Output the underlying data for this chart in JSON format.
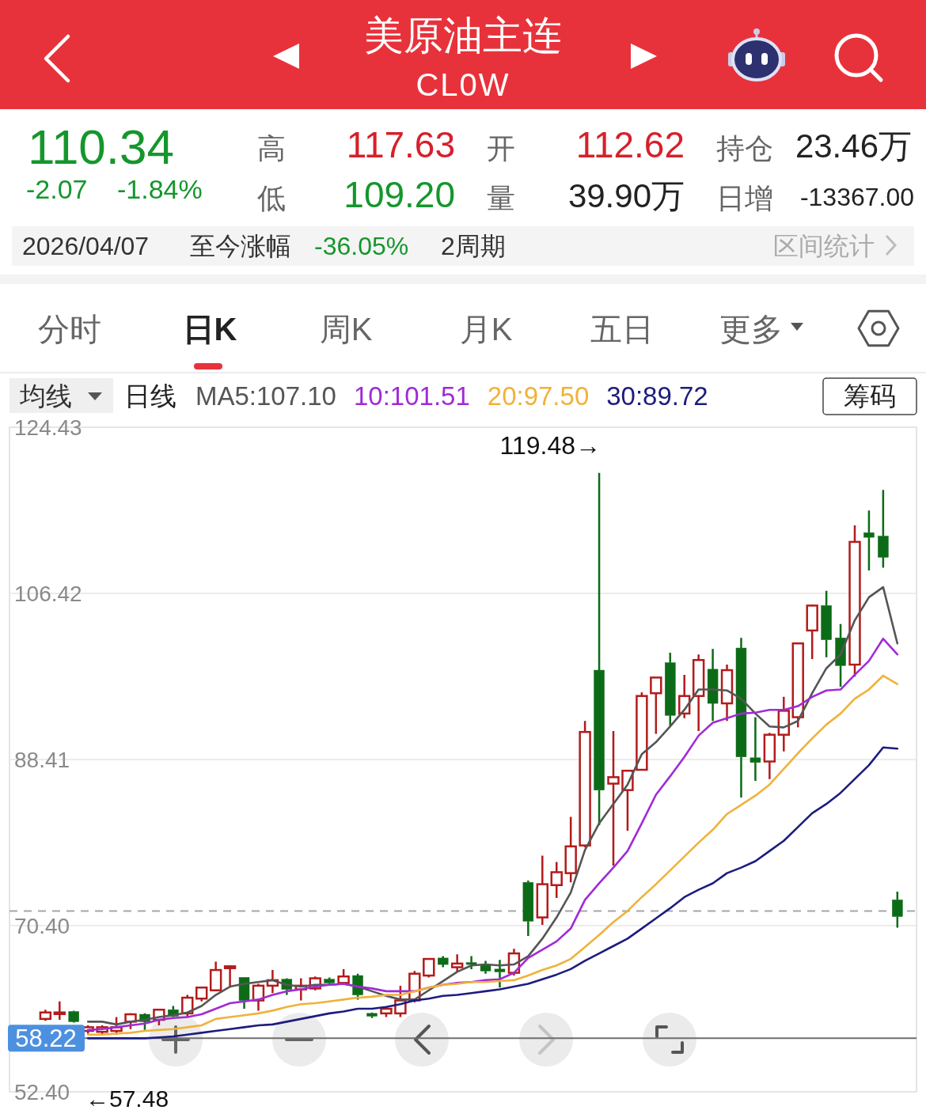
{
  "chart_data": {
    "type": "candlestick",
    "title": "美原油主连",
    "subtitle": "CL0W",
    "categories": [
      null,
      null,
      null,
      null,
      null,
      null,
      null,
      null,
      null,
      null,
      null,
      null,
      null,
      null,
      null,
      null,
      null,
      null,
      null,
      null,
      null,
      null,
      null,
      null,
      null,
      null,
      null,
      null,
      null,
      null,
      null,
      null,
      null,
      null,
      null,
      null,
      null,
      null,
      null,
      null,
      null,
      null,
      null,
      null,
      null,
      null,
      null,
      null,
      null,
      null,
      null,
      null,
      null,
      null,
      null,
      null,
      null,
      null,
      null,
      null,
      null,
      null,
      null
    ],
    "ohlc": [
      null,
      null,
      [
        60.3,
        61.3,
        60.1,
        61.0
      ],
      [
        60.9,
        62.2,
        60.2,
        61.0
      ],
      [
        61.1,
        61.2,
        59.9,
        60.0
      ],
      [
        59.0,
        59.6,
        58.7,
        59.4
      ],
      [
        58.9,
        59.6,
        58.6,
        59.4
      ],
      [
        59.0,
        60.5,
        58.6,
        59.4
      ],
      [
        60.0,
        60.9,
        59.2,
        60.8
      ],
      [
        60.8,
        60.9,
        59.1,
        60.0
      ],
      [
        60.2,
        61.4,
        59.6,
        61.3
      ],
      [
        61.3,
        61.7,
        60.5,
        60.6
      ],
      [
        60.9,
        62.9,
        60.5,
        62.6
      ],
      [
        62.5,
        63.7,
        62.2,
        63.7
      ],
      [
        63.4,
        66.5,
        63.3,
        65.6
      ],
      [
        65.8,
        66.1,
        63.7,
        66.0
      ],
      [
        64.8,
        64.8,
        61.4,
        62.3
      ],
      [
        62.3,
        64.1,
        61.2,
        63.9
      ],
      [
        63.9,
        65.6,
        63.1,
        64.5
      ],
      [
        64.6,
        64.7,
        62.9,
        63.5
      ],
      [
        63.5,
        64.7,
        62.3,
        63.9
      ],
      [
        63.6,
        64.9,
        63.4,
        64.7
      ],
      [
        64.6,
        64.8,
        64.0,
        64.2
      ],
      [
        64.2,
        65.7,
        64.1,
        64.9
      ],
      [
        65.0,
        65.2,
        62.4,
        62.9
      ],
      [
        60.9,
        61.0,
        60.4,
        60.6
      ],
      [
        60.9,
        61.6,
        60.5,
        61.4
      ],
      [
        60.9,
        63.9,
        60.5,
        62.3
      ],
      [
        62.3,
        65.5,
        62.1,
        65.2
      ],
      [
        65.0,
        66.9,
        64.8,
        66.8
      ],
      [
        66.9,
        67.1,
        65.9,
        66.2
      ],
      [
        65.9,
        67.3,
        65.4,
        66.3
      ],
      [
        66.4,
        67.1,
        65.7,
        66.2
      ],
      [
        66.2,
        66.6,
        65.2,
        65.5
      ],
      [
        65.7,
        66.7,
        63.7,
        65.4
      ],
      [
        65.3,
        67.9,
        65.0,
        67.4
      ],
      [
        75.1,
        75.3,
        69.3,
        70.9
      ],
      [
        71.3,
        78.0,
        70.5,
        74.9
      ],
      [
        74.8,
        77.3,
        73.4,
        76.2
      ],
      [
        76.1,
        82.2,
        75.1,
        79.0
      ],
      [
        79.1,
        92.6,
        78.9,
        91.4
      ],
      [
        98.1,
        119.48,
        81.3,
        85.1
      ],
      [
        85.8,
        91.5,
        76.9,
        86.5
      ],
      [
        85.1,
        87.3,
        80.7,
        87.2
      ],
      [
        87.3,
        95.7,
        87.3,
        95.3
      ],
      [
        95.6,
        97.3,
        91.2,
        97.3
      ],
      [
        98.9,
        100.0,
        92.0,
        93.2
      ],
      [
        93.4,
        97.6,
        92.9,
        95.3
      ],
      [
        95.3,
        99.8,
        91.5,
        99.2
      ],
      [
        98.2,
        100.4,
        92.6,
        94.5
      ],
      [
        94.5,
        98.7,
        92.6,
        98.1
      ],
      [
        100.5,
        101.6,
        84.3,
        88.7
      ],
      [
        88.6,
        93.0,
        86.1,
        88.1
      ],
      [
        88.2,
        91.3,
        86.3,
        91.1
      ],
      [
        91.1,
        95.2,
        89.3,
        93.7
      ],
      [
        93.0,
        101.0,
        91.9,
        101.0
      ],
      [
        102.4,
        105.2,
        99.3,
        105.1
      ],
      [
        105.1,
        106.7,
        99.5,
        101.4
      ],
      [
        101.6,
        103.1,
        96.3,
        98.6
      ],
      [
        98.7,
        113.8,
        97.4,
        112.0
      ],
      [
        113.0,
        115.4,
        108.9,
        112.5
      ],
      [
        112.62,
        117.63,
        109.2,
        110.34
      ],
      [
        73.2,
        74.1,
        70.2,
        71.4
      ]
    ],
    "colors": [
      null,
      null,
      "#b31b1b",
      "#b31b1b",
      "#0c6b17",
      "#b31b1b",
      "#b31b1b",
      "#b31b1b",
      "#b31b1b",
      "#0c6b17",
      "#b31b1b",
      "#0c6b17",
      "#b31b1b",
      "#b31b1b",
      "#b31b1b",
      "#b31b1b",
      "#0c6b17",
      "#b31b1b",
      "#b31b1b",
      "#0c6b17",
      "#b31b1b",
      "#b31b1b",
      "#0c6b17",
      "#b31b1b",
      "#0c6b17",
      "#0c6b17",
      "#b31b1b",
      "#b31b1b",
      "#b31b1b",
      "#b31b1b",
      "#0c6b17",
      "#b31b1b",
      "#0c6b17",
      "#0c6b17",
      "#0c6b17",
      "#b31b1b",
      "#0c6b17",
      "#b31b1b",
      "#b31b1b",
      "#b31b1b",
      "#b31b1b",
      "#0c6b17",
      "#b31b1b",
      "#b31b1b",
      "#b31b1b",
      "#b31b1b",
      "#0c6b17",
      "#b31b1b",
      "#b31b1b",
      "#0c6b17",
      "#b31b1b",
      "#0c6b17",
      "#0c6b17",
      "#b31b1b",
      "#b31b1b",
      "#b31b1b",
      "#b31b1b",
      "#0c6b17",
      "#0c6b17",
      "#b31b1b",
      "#0c6b17",
      "#0c6b17",
      "#0c6b17"
    ],
    "series": [
      {
        "type": "line",
        "name": "MA5:107.10",
        "color": "#555555",
        "values": [
          null,
          null,
          null,
          null,
          null,
          60.0,
          60.0,
          59.7,
          60.0,
          60.2,
          60.5,
          60.7,
          61.0,
          61.7,
          62.9,
          63.8,
          64.1,
          64.3,
          64.5,
          64.0,
          63.8,
          64.0,
          64.0,
          64.1,
          63.8,
          63.3,
          62.8,
          62.4,
          62.4,
          63.4,
          64.4,
          65.4,
          66.1,
          66.2,
          66.1,
          66.2,
          67.1,
          69.0,
          71.3,
          74.0,
          78.6,
          81.5,
          83.6,
          85.7,
          89.0,
          90.3,
          92.0,
          93.8,
          96.0,
          96.0,
          95.9,
          95.0,
          93.4,
          92.0,
          91.9,
          92.6,
          95.6,
          98.3,
          99.8,
          103.5,
          106.0,
          107.1,
          101.0
        ]
      },
      {
        "type": "line",
        "name": "10:101.51",
        "color": "#a02bd6",
        "values": [
          null,
          null,
          null,
          null,
          null,
          59.1,
          59.2,
          59.4,
          59.6,
          59.8,
          60.2,
          60.4,
          60.5,
          60.8,
          61.4,
          62.0,
          62.2,
          62.4,
          62.9,
          63.3,
          63.5,
          63.8,
          64.0,
          64.1,
          63.8,
          63.6,
          63.3,
          63.3,
          63.3,
          63.7,
          64.0,
          64.2,
          64.3,
          64.5,
          64.6,
          65.3,
          66.9,
          67.8,
          68.7,
          70.1,
          73.2,
          75.0,
          76.7,
          78.5,
          81.5,
          84.6,
          86.6,
          88.7,
          91.0,
          92.4,
          92.9,
          93.4,
          93.5,
          93.8,
          93.8,
          94.2,
          95.2,
          95.9,
          96.0,
          97.6,
          99.1,
          101.51,
          99.8
        ]
      },
      {
        "type": "line",
        "name": "20:97.50",
        "color": "#f0b23a",
        "values": [
          null,
          null,
          null,
          null,
          null,
          58.6,
          58.6,
          58.7,
          58.8,
          59.0,
          59.1,
          59.2,
          59.4,
          59.6,
          60.3,
          60.5,
          60.7,
          60.9,
          61.2,
          61.6,
          61.9,
          62.0,
          62.2,
          62.4,
          62.6,
          62.7,
          62.9,
          62.9,
          63.3,
          63.7,
          64.0,
          64.1,
          64.3,
          64.3,
          64.4,
          64.5,
          65.0,
          65.6,
          66.1,
          66.8,
          68.1,
          69.4,
          70.8,
          72.0,
          73.5,
          74.9,
          76.4,
          77.9,
          79.4,
          80.8,
          82.5,
          83.5,
          84.5,
          85.7,
          87.4,
          89.1,
          90.7,
          92.2,
          93.4,
          95.0,
          96.0,
          97.5,
          96.6
        ]
      },
      {
        "type": "line",
        "name": "30:89.72",
        "color": "#1c1c7e",
        "values": [
          null,
          null,
          null,
          null,
          null,
          58.2,
          58.2,
          58.2,
          58.2,
          58.2,
          58.3,
          58.4,
          58.6,
          58.8,
          59.0,
          59.2,
          59.4,
          59.6,
          59.7,
          60.0,
          60.3,
          60.6,
          60.9,
          61.1,
          61.4,
          61.4,
          61.6,
          61.9,
          62.3,
          62.5,
          62.8,
          62.9,
          63.1,
          63.3,
          63.5,
          63.8,
          64.1,
          64.6,
          65.1,
          65.7,
          66.6,
          67.4,
          68.2,
          69.0,
          70.1,
          71.2,
          72.3,
          73.5,
          74.3,
          75.0,
          76.1,
          76.7,
          77.4,
          78.5,
          79.6,
          81.1,
          82.6,
          83.6,
          84.8,
          86.3,
          87.8,
          89.72,
          89.6
        ]
      }
    ],
    "legend": "top left",
    "legend_title": "日线",
    "ylim": [
      52.4,
      124.43
    ],
    "yticks": [
      124.43,
      106.42,
      88.41,
      {
        "value": 70.4,
        "label": "70.40"
      },
      {
        "value": 52.4,
        "label": "52.40"
      }
    ],
    "grid": "y",
    "tick_labels": "y",
    "ref_lines": [
      {
        "axis": "y",
        "value": 72.0,
        "color": "#a6a6a6",
        "line_style": "dashed"
      },
      {
        "axis": "y",
        "value": 58.22,
        "label": "58.22",
        "color": "#6e6e6e"
      }
    ],
    "annotations": [
      "110.34",
      "-2.07",
      "-1.84%",
      "高",
      "117.63",
      "开",
      "112.62",
      "持仓",
      "23.46万",
      "低",
      "109.20",
      "量",
      "39.90万",
      "日增",
      "-13367.00",
      "2026/04/07",
      "至今涨幅",
      "-36.05%",
      "2周期",
      "区间统计",
      "分时",
      "日K",
      "周K",
      "月K",
      "五日",
      "更多",
      "均线",
      "筹码",
      "119.48→",
      "←57.48"
    ]
  }
}
